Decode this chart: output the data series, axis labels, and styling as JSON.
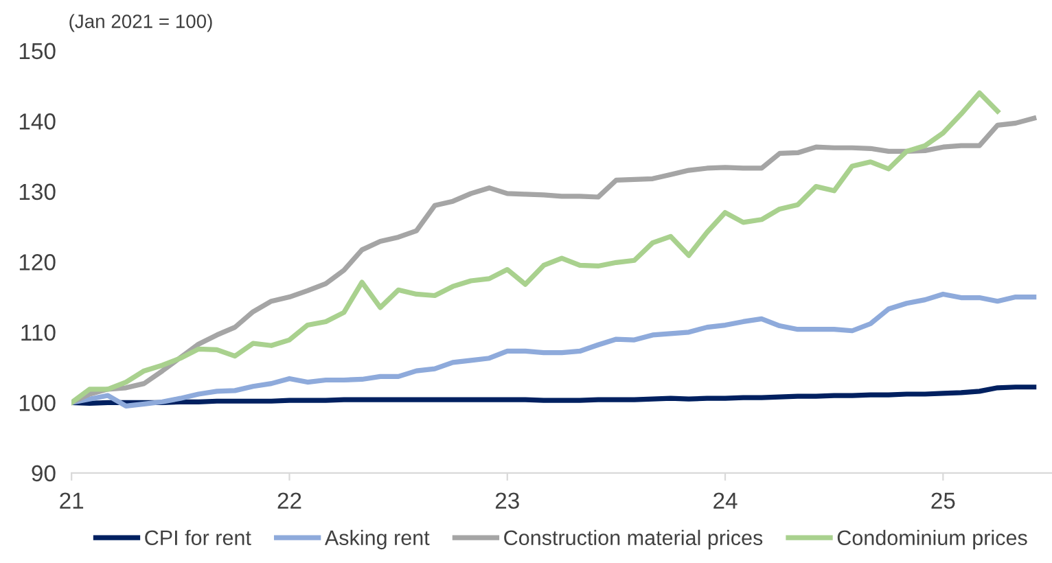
{
  "chart_data": {
    "type": "line",
    "ylabel": "(Jan 2021 = 100)",
    "x": [
      21,
      21.083,
      21.167,
      21.25,
      21.333,
      21.417,
      21.5,
      21.583,
      21.667,
      21.75,
      21.833,
      21.917,
      22,
      22.083,
      22.167,
      22.25,
      22.333,
      22.417,
      22.5,
      22.583,
      22.667,
      22.75,
      22.833,
      22.917,
      23,
      23.083,
      23.167,
      23.25,
      23.333,
      23.417,
      23.5,
      23.583,
      23.667,
      23.75,
      23.833,
      23.917,
      24,
      24.083,
      24.167,
      24.25,
      24.333,
      24.417,
      24.5,
      24.583,
      24.667,
      24.75,
      24.833,
      24.917,
      25,
      25.083,
      25.167,
      25.25,
      25.333,
      25.417
    ],
    "series": [
      {
        "name": "CPI for rent",
        "color": "#002060",
        "values": [
          100,
          99.9,
          100,
          100,
          100,
          100,
          100.1,
          100.1,
          100.2,
          100.2,
          100.2,
          100.2,
          100.3,
          100.3,
          100.3,
          100.4,
          100.4,
          100.4,
          100.4,
          100.4,
          100.4,
          100.4,
          100.4,
          100.4,
          100.4,
          100.4,
          100.3,
          100.3,
          100.3,
          100.4,
          100.4,
          100.4,
          100.5,
          100.6,
          100.5,
          100.6,
          100.6,
          100.7,
          100.7,
          100.8,
          100.9,
          100.9,
          101.0,
          101.0,
          101.1,
          101.1,
          101.2,
          101.2,
          101.3,
          101.4,
          101.6,
          102.1,
          102.2,
          102.2
        ]
      },
      {
        "name": "Asking rent",
        "color": "#8eaadb",
        "values": [
          100,
          100.5,
          101.0,
          99.5,
          99.8,
          100.1,
          100.6,
          101.2,
          101.6,
          101.7,
          102.3,
          102.7,
          103.4,
          102.9,
          103.2,
          103.2,
          103.3,
          103.7,
          103.7,
          104.5,
          104.8,
          105.7,
          106.0,
          106.3,
          107.3,
          107.3,
          107.1,
          107.1,
          107.3,
          108.2,
          109.0,
          108.9,
          109.6,
          109.8,
          110.0,
          110.7,
          111.0,
          111.5,
          111.9,
          110.9,
          110.4,
          110.4,
          110.4,
          110.2,
          111.2,
          113.3,
          114.1,
          114.6,
          115.4,
          114.9,
          114.9,
          114.4,
          115.0,
          115.0
        ]
      },
      {
        "name": "Construction material prices",
        "color": "#a5a5a5",
        "values": [
          100,
          101.2,
          101.9,
          102.1,
          102.7,
          104.5,
          106.4,
          108.3,
          109.6,
          110.7,
          112.9,
          114.4,
          115.0,
          115.9,
          116.9,
          118.8,
          121.7,
          122.9,
          123.5,
          124.4,
          128.0,
          128.6,
          129.7,
          130.5,
          129.7,
          129.6,
          129.5,
          129.3,
          129.3,
          129.2,
          131.6,
          131.7,
          131.8,
          132.4,
          133.0,
          133.3,
          133.4,
          133.3,
          133.3,
          135.4,
          135.5,
          136.3,
          136.2,
          136.2,
          136.1,
          135.7,
          135.7,
          135.8,
          136.3,
          136.5,
          136.5,
          139.4,
          139.7,
          140.4
        ]
      },
      {
        "name": "Condominium prices",
        "color": "#a9d18e",
        "values": [
          100,
          101.9,
          101.9,
          102.9,
          104.5,
          105.3,
          106.3,
          107.6,
          107.5,
          106.6,
          108.4,
          108.1,
          108.9,
          111.0,
          111.5,
          112.8,
          117.1,
          113.5,
          116.0,
          115.4,
          115.2,
          116.5,
          117.3,
          117.6,
          118.9,
          116.8,
          119.5,
          120.5,
          119.5,
          119.4,
          119.9,
          120.2,
          122.7,
          123.6,
          120.9,
          124.2,
          127.0,
          125.6,
          126.0,
          127.5,
          128.1,
          130.7,
          130.1,
          133.6,
          134.2,
          133.2,
          135.7,
          136.5,
          138.3,
          141.0,
          144.0,
          141.4,
          null,
          null
        ]
      }
    ],
    "xlim": [
      21,
      25.5
    ],
    "xticks": [
      21,
      22,
      23,
      24,
      25
    ],
    "ylim": [
      90,
      150
    ],
    "yticks": [
      90,
      100,
      110,
      120,
      130,
      140,
      150
    ],
    "grid": false,
    "legend": "bottom",
    "marker": "none",
    "line_style": "solid"
  }
}
